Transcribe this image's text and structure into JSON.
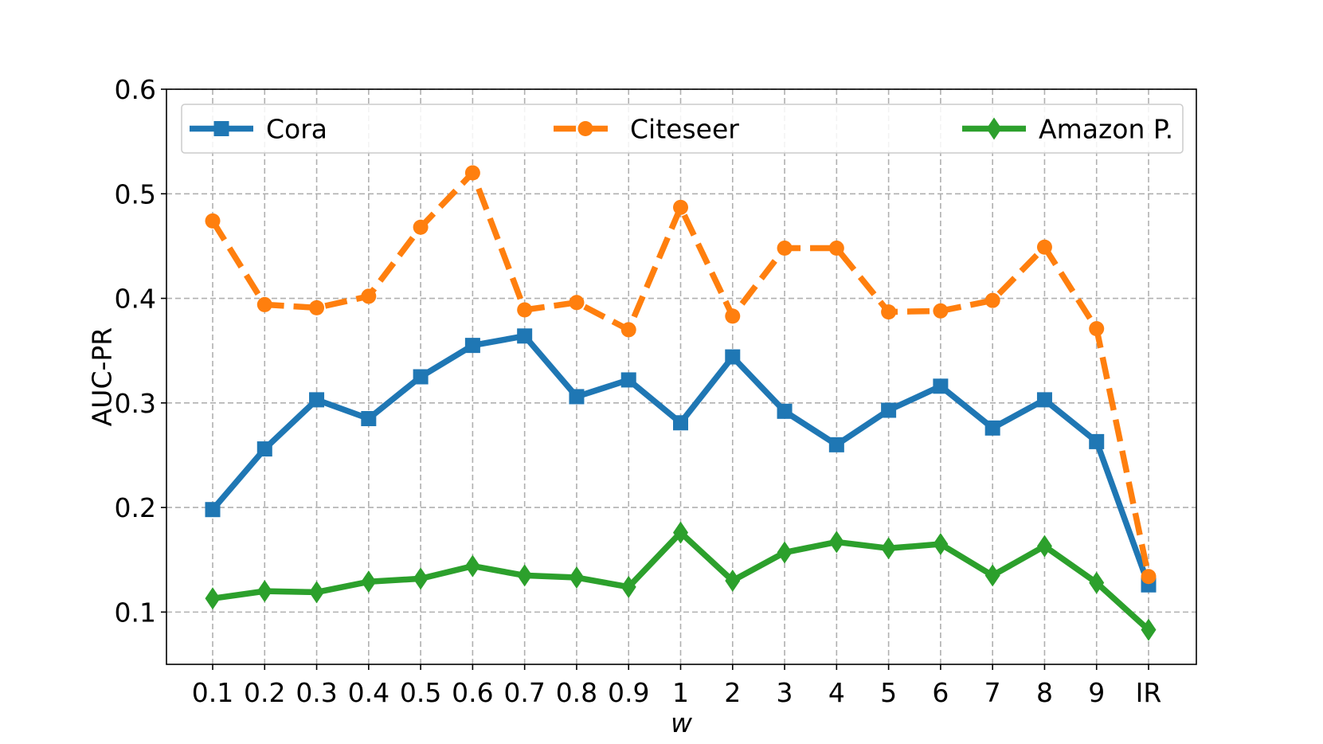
{
  "chart_data": {
    "type": "line",
    "title": "",
    "xlabel": "w",
    "ylabel": "AUC-PR",
    "categories": [
      "0.1",
      "0.2",
      "0.3",
      "0.4",
      "0.5",
      "0.6",
      "0.7",
      "0.8",
      "0.9",
      "1",
      "2",
      "3",
      "4",
      "5",
      "6",
      "7",
      "8",
      "9",
      "IR"
    ],
    "yticks": [
      "0.1",
      "0.2",
      "0.3",
      "0.4",
      "0.5",
      "0.6"
    ],
    "ylim": [
      0.05,
      0.6
    ],
    "grid": true,
    "legend_position": "top",
    "series": [
      {
        "name": "Cora",
        "color": "#1f77b4",
        "marker": "square",
        "linestyle": "solid",
        "values": [
          0.198,
          0.256,
          0.303,
          0.285,
          0.325,
          0.355,
          0.364,
          0.306,
          0.322,
          0.281,
          0.344,
          0.292,
          0.26,
          0.293,
          0.316,
          0.276,
          0.303,
          0.263,
          0.126
        ]
      },
      {
        "name": "Citeseer",
        "color": "#ff7f0e",
        "marker": "circle",
        "linestyle": "dashed",
        "values": [
          0.474,
          0.394,
          0.391,
          0.402,
          0.468,
          0.52,
          0.389,
          0.396,
          0.37,
          0.487,
          0.383,
          0.448,
          0.448,
          0.387,
          0.388,
          0.398,
          0.449,
          0.371,
          0.134
        ]
      },
      {
        "name": "Amazon P.",
        "color": "#2ca02c",
        "marker": "diamond",
        "linestyle": "solid",
        "values": [
          0.113,
          0.12,
          0.119,
          0.129,
          0.132,
          0.144,
          0.135,
          0.133,
          0.124,
          0.176,
          0.13,
          0.157,
          0.167,
          0.161,
          0.165,
          0.135,
          0.163,
          0.128,
          0.083
        ]
      }
    ]
  }
}
